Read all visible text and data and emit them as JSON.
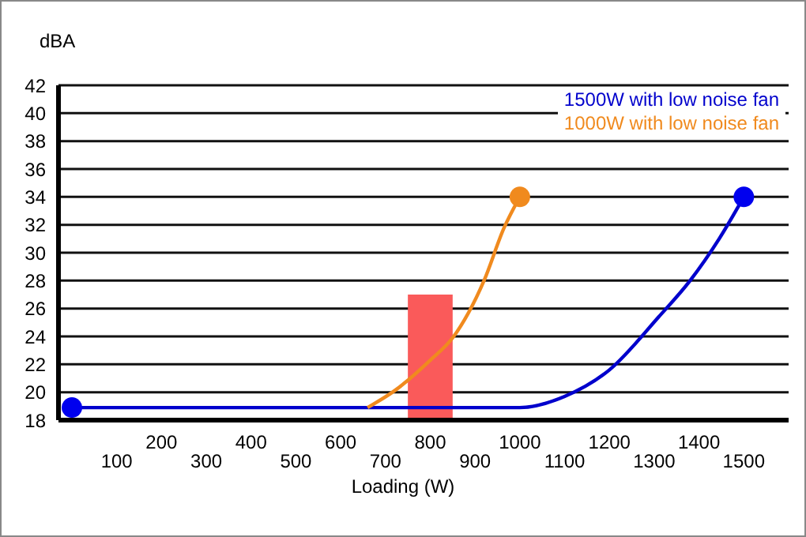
{
  "chart_data": {
    "type": "line",
    "xlabel": "Loading (W)",
    "ylabel": "dBA",
    "xlim": [
      -30,
      1600
    ],
    "xticks": [
      200,
      400,
      600,
      800,
      1000,
      1200,
      1400
    ],
    "x2lim": [
      -30,
      1600
    ],
    "x2ticks": [
      100,
      300,
      500,
      700,
      900,
      1100,
      1300,
      1500
    ],
    "ylim": [
      18,
      42
    ],
    "yticks": [
      18,
      20,
      22,
      24,
      26,
      28,
      30,
      32,
      34,
      36,
      38,
      40,
      42
    ],
    "grid": "y",
    "legend": "top right",
    "series": [
      {
        "type": "bar",
        "color": "#fa5a5a",
        "x": [
          800
        ],
        "values": [
          27
        ]
      },
      {
        "name": "1500W with low noise fan",
        "color": "#0000cc",
        "x": [
          0,
          1000,
          1100,
          1200,
          1310,
          1380,
          1445,
          1500
        ],
        "values": [
          18.9,
          18.9,
          19.7,
          21.6,
          25.4,
          28,
          31,
          34
        ]
      },
      {
        "name": "1000W with low noise fan",
        "color": "#f08a1e",
        "x": [
          660,
          720,
          800,
          850,
          920,
          965,
          1000
        ],
        "values": [
          18.9,
          20.1,
          22.3,
          23.9,
          28,
          31.8,
          34
        ]
      },
      {
        "type": "scatter",
        "color": "#0000ee",
        "x": [
          0,
          1500
        ],
        "values": [
          18.9,
          34
        ]
      },
      {
        "type": "scatter",
        "color": "#f08a1e",
        "x": [
          1000
        ],
        "values": [
          34
        ]
      }
    ]
  }
}
